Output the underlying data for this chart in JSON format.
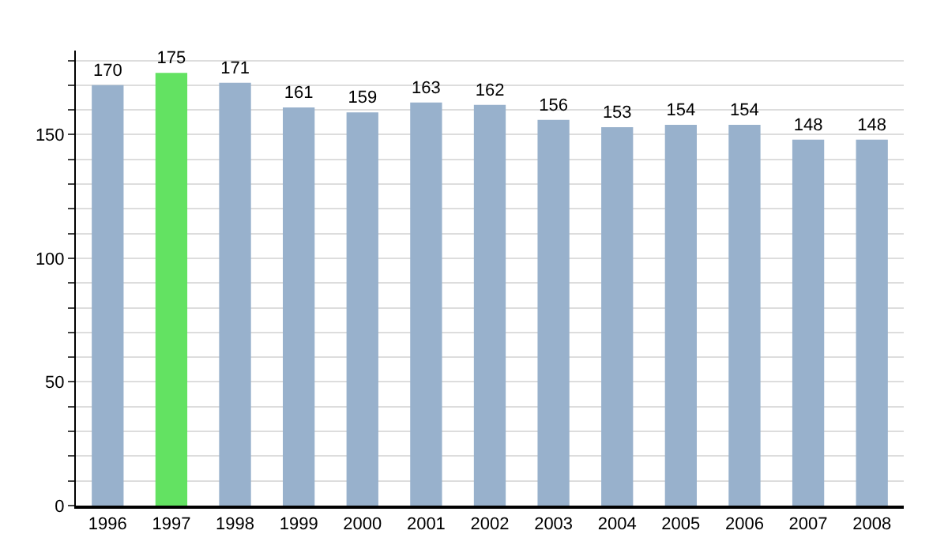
{
  "chart_data": {
    "type": "bar",
    "categories": [
      "1996",
      "1997",
      "1998",
      "1999",
      "2000",
      "2001",
      "2002",
      "2003",
      "2004",
      "2005",
      "2006",
      "2007",
      "2008"
    ],
    "values": [
      170,
      175,
      171,
      161,
      159,
      163,
      162,
      156,
      153,
      154,
      154,
      148,
      148
    ],
    "colors": [
      "#98b1cc",
      "#63e262",
      "#98b1cc",
      "#98b1cc",
      "#98b1cc",
      "#98b1cc",
      "#98b1cc",
      "#98b1cc",
      "#98b1cc",
      "#98b1cc",
      "#98b1cc",
      "#98b1cc",
      "#98b1cc"
    ],
    "ylim": [
      0,
      184
    ],
    "yticks": [
      0,
      {
        "value": 10,
        "label": null
      },
      {
        "value": 20,
        "label": null
      },
      {
        "value": 30,
        "label": null
      },
      {
        "value": 40,
        "label": null
      },
      50,
      {
        "value": 60,
        "label": null
      },
      {
        "value": 70,
        "label": null
      },
      {
        "value": 80,
        "label": null
      },
      {
        "value": 90,
        "label": null
      },
      100,
      {
        "value": 110,
        "label": null
      },
      {
        "value": 120,
        "label": null
      },
      {
        "value": 130,
        "label": null
      },
      {
        "value": 140,
        "label": null
      },
      150,
      {
        "value": 160,
        "label": null
      },
      {
        "value": 170,
        "label": null
      },
      {
        "value": 180,
        "label": null
      }
    ],
    "data_labels": true,
    "grid": "y"
  }
}
